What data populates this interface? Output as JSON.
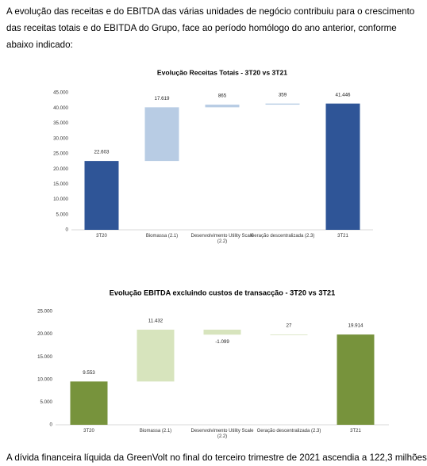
{
  "intro": "A evolução das receitas e do EBITDA das várias unidades de negócio contribuiu para o crescimento das receitas totais e do EBITDA do Grupo, face ao período homólogo do ano anterior, conforme abaixo indicado:",
  "chart_data": [
    {
      "type": "waterfall",
      "title": "Evolução Receitas Totais - 3T20 vs 3T21",
      "categories": [
        "3T20",
        "Biomassa (2.1)",
        "Desenvolvimento Utility Scale (2.2)",
        "Geração descentralizada (2.3)",
        "3T21"
      ],
      "values": [
        22603,
        17619,
        865,
        359,
        41446
      ],
      "value_labels": [
        "22.603",
        "17.619",
        "865",
        "359",
        "41.446"
      ],
      "measure": [
        "absolute",
        "relative",
        "relative",
        "relative",
        "total"
      ],
      "colors": [
        "#2f5597",
        "#b8cce4",
        "#b8cce4",
        "#b8cce4",
        "#2f5597"
      ],
      "ylim": [
        0,
        45000
      ],
      "yticks": [
        0,
        {
          "value": 5000,
          "label": "5.000"
        },
        {
          "value": 10000,
          "label": "10.000"
        },
        {
          "value": 15000,
          "label": "15.000"
        },
        {
          "value": 20000,
          "label": "20.000"
        },
        {
          "value": 25000,
          "label": "25.000"
        },
        {
          "value": 30000,
          "label": "30.000"
        },
        {
          "value": 35000,
          "label": "35.000"
        },
        {
          "value": 40000,
          "label": "40.000"
        },
        {
          "value": 45000,
          "label": "45.000"
        }
      ]
    },
    {
      "type": "waterfall",
      "title": "Evolução EBITDA excluindo custos de transacção - 3T20 vs 3T21",
      "categories": [
        "3T20",
        "Biomassa (2.1)",
        "Desenvolvimento Utility Scale (2.2)",
        "Geração descentralizada (2.3)",
        "3T21"
      ],
      "values": [
        9553,
        11432,
        -1099,
        27,
        19914
      ],
      "value_labels": [
        "9.553",
        "11.432",
        "-1.099",
        "27",
        "19.914"
      ],
      "measure": [
        "absolute",
        "relative",
        "relative",
        "relative",
        "total"
      ],
      "colors": [
        "#77933c",
        "#d7e4bd",
        "#d7e4bd",
        "#d7e4bd",
        "#77933c"
      ],
      "ylim": [
        0,
        25000
      ],
      "yticks": [
        0,
        {
          "value": 5000,
          "label": "5.000"
        },
        {
          "value": 10000,
          "label": "10.000"
        },
        {
          "value": 15000,
          "label": "15.000"
        },
        {
          "value": 20000,
          "label": "20.000"
        },
        {
          "value": 25000,
          "label": "25.000"
        }
      ]
    }
  ],
  "outro": "A dívida financeira líquida da GreenVolt no final do terceiro trimestre de 2021 ascendia a 122,3 milhões"
}
